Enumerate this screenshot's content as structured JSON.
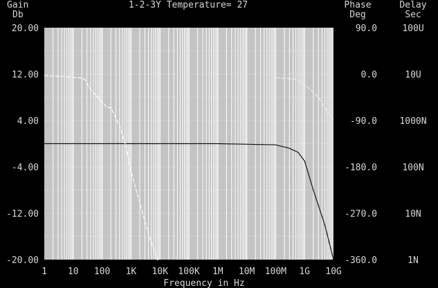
{
  "chart_data": {
    "type": "line",
    "title": "1-2-3Y Temperature= 27",
    "xlabel": "Frequency in Hz",
    "x_scale": "log",
    "xlim": [
      1,
      10000000000
    ],
    "x_ticks": [
      {
        "value": 1,
        "label": "1"
      },
      {
        "value": 10,
        "label": "10"
      },
      {
        "value": 100,
        "label": "100"
      },
      {
        "value": 1000,
        "label": "1K"
      },
      {
        "value": 10000,
        "label": "10K"
      },
      {
        "value": 100000,
        "label": "100K"
      },
      {
        "value": 1000000,
        "label": "1M"
      },
      {
        "value": 10000000,
        "label": "10M"
      },
      {
        "value": 100000000,
        "label": "100M"
      },
      {
        "value": 1000000000,
        "label": "1G"
      },
      {
        "value": 10000000000,
        "label": "10G"
      }
    ],
    "axes": {
      "gain": {
        "label_line1": "Gain",
        "label_line2": "Db",
        "range": [
          -20,
          20
        ],
        "ticks": [
          "20.00",
          "12.00",
          "4.00",
          "-4.00",
          "-12.00",
          "-20.00"
        ]
      },
      "phase": {
        "label_line1": "Phase",
        "label_line2": "Deg",
        "range": [
          -360,
          90
        ],
        "ticks": [
          "90.0",
          "0.0",
          "-90.0",
          "-180.0",
          "-270.0",
          "-360.0"
        ]
      },
      "delay": {
        "label_line1": "Delay",
        "label_line2": "Sec",
        "scale": "log",
        "range": [
          1e-09,
          0.0001
        ],
        "ticks": [
          "100U",
          "10U",
          "1000N",
          "100N",
          "10N",
          "1N"
        ]
      }
    },
    "grid": true,
    "series": [
      {
        "axis": "gain",
        "color": "#111111",
        "x": [
          1,
          10,
          100,
          1000,
          10000,
          100000,
          1000000,
          10000000,
          100000000,
          300000000,
          600000000,
          1000000000,
          2000000000,
          5000000000,
          10000000000
        ],
        "y": [
          0.0,
          0.0,
          0.0,
          0.0,
          0.0,
          0.0,
          0.0,
          -0.1,
          -0.2,
          -0.8,
          -1.5,
          -3.0,
          -8.0,
          -14.0,
          -20.0
        ]
      },
      {
        "axis": "phase",
        "color": "#ffffff",
        "dashed": true,
        "x": [
          1,
          5,
          15,
          25,
          40,
          150,
          200,
          400,
          700,
          1000,
          2000,
          4000,
          8000,
          9000
        ],
        "y": [
          -3,
          -5,
          -7,
          -10,
          -30,
          -65,
          -65,
          -100,
          -145,
          -190,
          -250,
          -310,
          -360,
          -360
        ]
      },
      {
        "axis": "phase",
        "color": "#eeeeee",
        "dashed": true,
        "x": [
          100000000,
          500000000,
          1000000000,
          3000000000,
          7000000000,
          10000000000
        ],
        "y": [
          -7,
          -10,
          -20,
          -45,
          -78,
          -90
        ]
      }
    ]
  }
}
